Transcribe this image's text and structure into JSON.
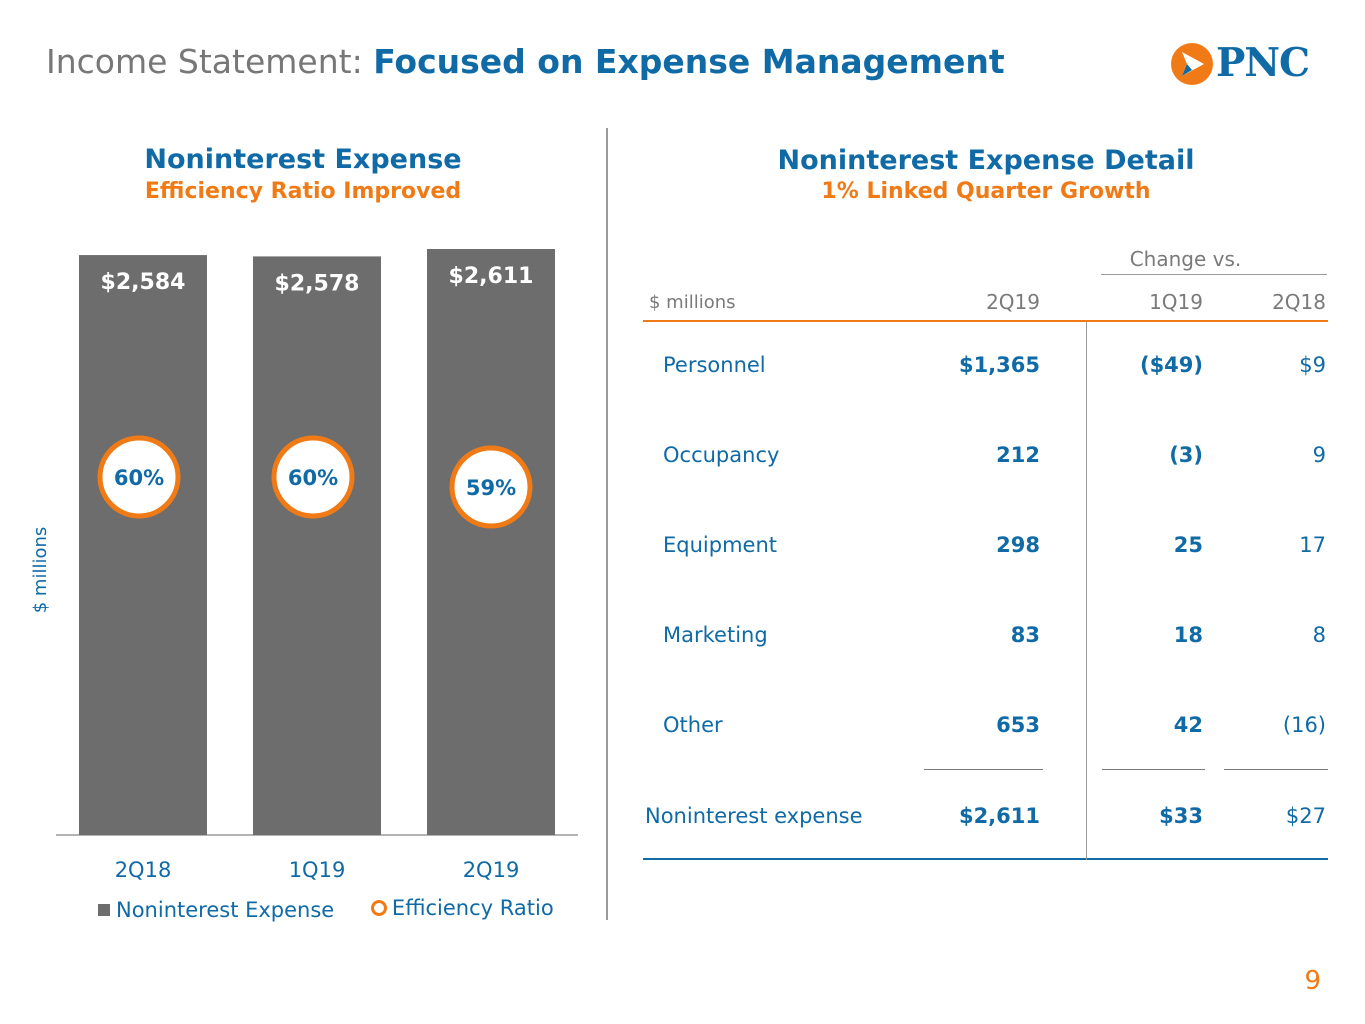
{
  "header": {
    "title_prefix": "Income Statement:",
    "title_main": "Focused on Expense Management",
    "logo_text": "PNC"
  },
  "left_panel": {
    "title": "Noninterest Expense",
    "subtitle": "Efficiency Ratio Improved",
    "y_axis_label": "$ millions"
  },
  "chart_data": {
    "type": "bar",
    "categories": [
      "2Q18",
      "1Q19",
      "2Q19"
    ],
    "series": [
      {
        "name": "Noninterest Expense",
        "values": [
          2584,
          2578,
          2611
        ],
        "value_labels": [
          "$2,584",
          "$2,578",
          "$2,611"
        ],
        "color": "#6d6d6d"
      },
      {
        "name": "Efficiency Ratio",
        "values": [
          60,
          60,
          59
        ],
        "value_labels": [
          "60%",
          "60%",
          "59%"
        ],
        "color": "#f07b16"
      }
    ],
    "ylabel": "$ millions",
    "legend": "bottom",
    "grid": false
  },
  "right_panel": {
    "title": "Noninterest Expense Detail",
    "subtitle": "1% Linked Quarter Growth",
    "change_header": "Change vs.",
    "col_label": "$ millions",
    "columns": [
      "2Q19",
      "1Q19",
      "2Q18"
    ],
    "rows": [
      {
        "label": "Personnel",
        "v2q19": "$1,365",
        "v1q19": "($49)",
        "v2q18": "$9"
      },
      {
        "label": "Occupancy",
        "v2q19": "212",
        "v1q19": "(3)",
        "v2q18": "9"
      },
      {
        "label": "Equipment",
        "v2q19": "298",
        "v1q19": "25",
        "v2q18": "17"
      },
      {
        "label": "Marketing",
        "v2q19": "83",
        "v1q19": "18",
        "v2q18": "8"
      },
      {
        "label": "Other",
        "v2q19": "653",
        "v1q19": "42",
        "v2q18": "(16)"
      }
    ],
    "total": {
      "label": "Noninterest expense",
      "v2q19": "$2,611",
      "v1q19": "$33",
      "v2q18": "$27"
    }
  },
  "page_number": "9",
  "colors": {
    "brand_blue": "#0f6aa6",
    "accent_orange": "#f07b16",
    "bar_gray": "#6d6d6d"
  }
}
